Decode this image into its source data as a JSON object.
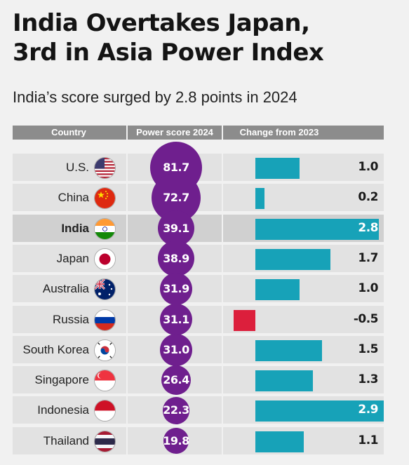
{
  "title_line1": "India Overtakes Japan,",
  "title_line2": "3rd in Asia Power Index",
  "subtitle": "India’s score surged by 2.8 points in 2024",
  "colors": {
    "bubble": "#6f1f8e",
    "positive_bar": "#17a2b8",
    "negative_bar": "#dc1f3c",
    "header_bg": "#8c8c8c"
  },
  "chart_data": {
    "type": "table",
    "columns": [
      "Country",
      "Power score 2024",
      "Change from 2023"
    ],
    "rows": [
      {
        "country": "U.S.",
        "flag": "us-flag-icon",
        "score": "81.7",
        "change": "1.0",
        "change_value": 1.0
      },
      {
        "country": "China",
        "flag": "china-flag-icon",
        "score": "72.7",
        "change": "0.2",
        "change_value": 0.2
      },
      {
        "country": "India",
        "flag": "india-flag-icon",
        "score": "39.1",
        "change": "2.8",
        "change_value": 2.8,
        "highlight": true
      },
      {
        "country": "Japan",
        "flag": "japan-flag-icon",
        "score": "38.9",
        "change": "1.7",
        "change_value": 1.7
      },
      {
        "country": "Australia",
        "flag": "australia-flag-icon",
        "score": "31.9",
        "change": "1.0",
        "change_value": 1.0
      },
      {
        "country": "Russia",
        "flag": "russia-flag-icon",
        "score": "31.1",
        "change": "-0.5",
        "change_value": -0.5
      },
      {
        "country": "South Korea",
        "flag": "south-korea-flag-icon",
        "score": "31.0",
        "change": "1.5",
        "change_value": 1.5
      },
      {
        "country": "Singapore",
        "flag": "singapore-flag-icon",
        "score": "26.4",
        "change": "1.3",
        "change_value": 1.3
      },
      {
        "country": "Indonesia",
        "flag": "indonesia-flag-icon",
        "score": "22.3",
        "change": "2.9",
        "change_value": 2.9
      },
      {
        "country": "Thailand",
        "flag": "thailand-flag-icon",
        "score": "19.8",
        "change": "1.1",
        "change_value": 1.1
      }
    ]
  }
}
